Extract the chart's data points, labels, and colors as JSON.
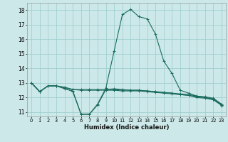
{
  "title": "",
  "xlabel": "Humidex (Indice chaleur)",
  "xlim": [
    -0.5,
    23.5
  ],
  "ylim": [
    10.7,
    18.5
  ],
  "yticks": [
    11,
    12,
    13,
    14,
    15,
    16,
    17,
    18
  ],
  "xticks": [
    0,
    1,
    2,
    3,
    4,
    5,
    6,
    7,
    8,
    9,
    10,
    11,
    12,
    13,
    14,
    15,
    16,
    17,
    18,
    19,
    20,
    21,
    22,
    23
  ],
  "bg_color": "#cce8e8",
  "grid_color": "#99cccc",
  "line_color": "#1a6b5e",
  "lines": [
    {
      "x": [
        0,
        1,
        2,
        3,
        4,
        5,
        6,
        7,
        8,
        9,
        10,
        11,
        12,
        13,
        14,
        15,
        16,
        17,
        18,
        19,
        20,
        21,
        22,
        23
      ],
      "y": [
        13.0,
        12.4,
        12.8,
        12.8,
        12.6,
        12.45,
        10.85,
        10.85,
        11.55,
        12.65,
        15.2,
        17.7,
        18.05,
        17.55,
        17.4,
        16.35,
        14.5,
        13.65,
        12.5,
        12.3,
        12.1,
        12.0,
        11.85,
        11.5
      ]
    },
    {
      "x": [
        0,
        1,
        2,
        3,
        4,
        5,
        6,
        7,
        8,
        9,
        10,
        11,
        12,
        13,
        14,
        15,
        16,
        17,
        18,
        19,
        20,
        21,
        22,
        23
      ],
      "y": [
        13.0,
        12.4,
        12.8,
        12.8,
        12.7,
        12.55,
        12.55,
        12.55,
        12.55,
        12.55,
        12.55,
        12.5,
        12.5,
        12.5,
        12.45,
        12.4,
        12.35,
        12.3,
        12.25,
        12.2,
        12.1,
        12.05,
        11.95,
        11.55
      ]
    },
    {
      "x": [
        0,
        1,
        2,
        3,
        4,
        5,
        6,
        7,
        8,
        9,
        10,
        11,
        12,
        13,
        14,
        15,
        16,
        17,
        18,
        19,
        20,
        21,
        22,
        23
      ],
      "y": [
        13.0,
        12.4,
        12.8,
        12.8,
        12.7,
        12.55,
        12.5,
        12.5,
        12.5,
        12.5,
        12.5,
        12.45,
        12.45,
        12.45,
        12.4,
        12.35,
        12.3,
        12.25,
        12.2,
        12.15,
        12.05,
        12.0,
        11.9,
        11.5
      ]
    },
    {
      "x": [
        0,
        1,
        2,
        3,
        4,
        5,
        6,
        7,
        8,
        9,
        10,
        11,
        12,
        13,
        14,
        15,
        16,
        17,
        18,
        19,
        20,
        21,
        22,
        23
      ],
      "y": [
        13.0,
        12.4,
        12.8,
        12.8,
        12.65,
        12.4,
        10.85,
        10.85,
        11.5,
        12.55,
        12.6,
        12.55,
        12.5,
        12.5,
        12.45,
        12.4,
        12.35,
        12.3,
        12.2,
        12.15,
        12.0,
        11.95,
        11.85,
        11.45
      ]
    }
  ]
}
